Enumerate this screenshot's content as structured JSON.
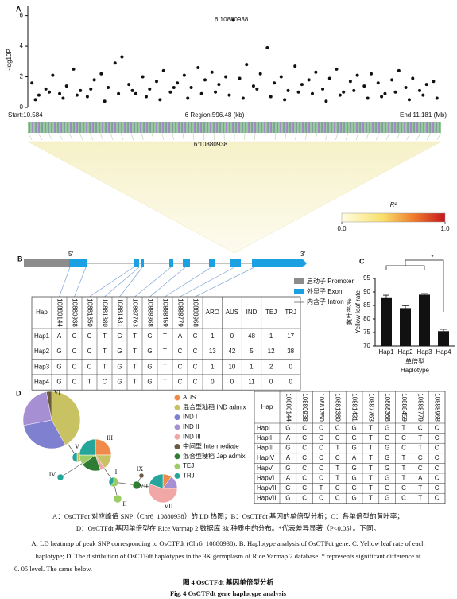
{
  "panel_a": {
    "label": "A",
    "ylabel": "-log10P",
    "ylim": [
      0,
      6.5
    ],
    "yticks": [
      0,
      2,
      4,
      6
    ],
    "xlim": [
      10.584,
      11.181
    ],
    "peak_label": "6:10880938",
    "start_label": "Start:10.584",
    "region_label": "6 Region:596.48 (kb)",
    "end_label": "End:11.181 (Mb)",
    "ld_label": "6:10880938",
    "colorbar_title": "R²",
    "colorbar_ticks": [
      {
        "value": 0,
        "label": "0.0"
      },
      {
        "value": 1,
        "label": "1.0"
      }
    ],
    "points": {
      "x": [
        10.59,
        10.6,
        10.61,
        10.62,
        10.63,
        10.64,
        10.65,
        10.66,
        10.67,
        10.68,
        10.69,
        10.7,
        10.71,
        10.72,
        10.73,
        10.74,
        10.75,
        10.76,
        10.77,
        10.78,
        10.79,
        10.8,
        10.81,
        10.82,
        10.83,
        10.84,
        10.85,
        10.86,
        10.87,
        10.880938,
        10.89,
        10.9,
        10.91,
        10.92,
        10.93,
        10.94,
        10.95,
        10.96,
        10.97,
        10.98,
        10.99,
        11.0,
        11.01,
        11.02,
        11.03,
        11.04,
        11.05,
        11.06,
        11.07,
        11.08,
        11.09,
        11.1,
        11.11,
        11.12,
        11.13,
        11.14,
        11.15,
        11.16,
        11.17,
        10.595,
        10.615,
        10.635,
        10.655,
        10.675,
        10.695,
        10.715,
        10.735,
        10.755,
        10.775,
        10.795,
        10.815,
        10.835,
        10.855,
        10.875,
        10.895,
        10.915,
        10.935,
        10.955,
        10.975,
        10.995,
        11.015,
        11.035,
        11.055,
        11.075,
        11.095,
        11.115,
        11.135,
        11.155,
        11.175
      ],
      "y": [
        1.6,
        0.8,
        1.2,
        2.1,
        0.9,
        1.4,
        2.5,
        1.1,
        0.7,
        1.8,
        2.2,
        1.3,
        2.9,
        3.3,
        1.5,
        0.9,
        2.0,
        1.2,
        1.7,
        2.4,
        1.0,
        1.6,
        2.1,
        1.3,
        2.6,
        1.8,
        2.3,
        1.5,
        2.0,
        5.7,
        1.9,
        2.8,
        1.4,
        2.2,
        3.9,
        1.6,
        2.0,
        1.1,
        2.7,
        1.5,
        1.8,
        2.3,
        1.2,
        1.9,
        2.5,
        1.0,
        1.7,
        2.1,
        1.4,
        2.2,
        1.6,
        0.9,
        1.8,
        2.4,
        1.3,
        1.9,
        1.1,
        1.5,
        1.7,
        0.5,
        1.0,
        0.6,
        0.8,
        1.2,
        0.4,
        0.9,
        1.1,
        0.7,
        0.5,
        1.3,
        0.6,
        0.9,
        1.0,
        0.8,
        0.6,
        1.2,
        0.7,
        0.5,
        1.0,
        0.9,
        0.4,
        0.8,
        1.1,
        0.6,
        0.7,
        1.0,
        0.5,
        0.8,
        0.6
      ]
    }
  },
  "panel_b": {
    "label": "B",
    "five_prime": "5'",
    "three_prime": "3'",
    "legend": [
      "启动子 Promoter",
      "外显子 Exon",
      "内含子 Intron"
    ],
    "table": {
      "header": [
        "Hap",
        "10880144",
        "10880938",
        "10881350",
        "10881380",
        "10881431",
        "10887763",
        "10888368",
        "10888459",
        "10888779",
        "10888968",
        "ARO",
        "AUS",
        "IND",
        "TEJ",
        "TRJ"
      ],
      "rows": [
        [
          "Hap1",
          "A",
          "C",
          "C",
          "T",
          "G",
          "T",
          "G",
          "T",
          "A",
          "C",
          "1",
          "0",
          "48",
          "1",
          "17"
        ],
        [
          "Hap2",
          "G",
          "C",
          "C",
          "T",
          "G",
          "T",
          "G",
          "T",
          "C",
          "C",
          "13",
          "42",
          "5",
          "12",
          "38"
        ],
        [
          "Hap3",
          "G",
          "C",
          "C",
          "T",
          "G",
          "T",
          "G",
          "T",
          "C",
          "C",
          "1",
          "10",
          "1",
          "2",
          "0"
        ],
        [
          "Hap4",
          "G",
          "C",
          "T",
          "C",
          "G",
          "T",
          "G",
          "T",
          "C",
          "C",
          "0",
          "0",
          "11",
          "0",
          "0"
        ]
      ]
    }
  },
  "panel_c": {
    "label": "C",
    "type": "bar",
    "ylabel_cn": "黄叶率/%",
    "ylabel_en": "Yellow leaf rate",
    "xlabel_cn": "单倍型",
    "xlabel_en": "Haplotype",
    "categories": [
      "Hap1",
      "Hap2",
      "Hap3",
      "Hap4"
    ],
    "values": [
      88,
      84,
      89,
      75.5
    ],
    "errors": [
      0.8,
      0.9,
      0.4,
      0.7
    ],
    "color": "#111111",
    "ylim": [
      70,
      95
    ],
    "yticks": [
      70,
      75,
      80,
      85,
      90,
      95
    ],
    "significance": "*"
  },
  "panel_d": {
    "label": "D",
    "groups": [
      "AUS",
      "混合型籼稻 IND admix",
      "IND I",
      "IND II",
      "IND III",
      "中间型 Intermediate",
      "混合型粳稻 Jap admix",
      "TEJ",
      "TRJ"
    ],
    "colors": [
      "#f08a4b",
      "#c9c263",
      "#7f80cf",
      "#a68fd2",
      "#f2a7a7",
      "#6b5a40",
      "#2e7d32",
      "#9ccc65",
      "#26a69a"
    ],
    "pies": [
      {
        "label": "VI",
        "shares": [
          0,
          42,
          30,
          25,
          0,
          3,
          0,
          0,
          0
        ]
      },
      {
        "label": "V",
        "shares": [
          0,
          50,
          0,
          0,
          0,
          0,
          0,
          0,
          50
        ]
      },
      {
        "label": "III",
        "shares": [
          25,
          15,
          0,
          0,
          5,
          0,
          20,
          10,
          25
        ]
      },
      {
        "label": "IV",
        "shares": [
          0,
          0,
          0,
          0,
          0,
          0,
          0,
          0,
          100
        ]
      },
      {
        "label": "I",
        "shares": [
          0,
          0,
          0,
          0,
          0,
          0,
          0,
          60,
          40
        ]
      },
      {
        "label": "II",
        "shares": [
          0,
          0,
          0,
          0,
          0,
          0,
          0,
          100,
          0
        ]
      },
      {
        "label": "VIII",
        "shares": [
          0,
          0,
          0,
          0,
          0,
          0,
          100,
          0,
          0
        ]
      },
      {
        "label": "IX",
        "shares": [
          0,
          0,
          0,
          0,
          0,
          100,
          0,
          0,
          0
        ]
      },
      {
        "label": "VII",
        "shares": [
          10,
          0,
          0,
          15,
          55,
          0,
          0,
          0,
          20
        ]
      }
    ],
    "table": {
      "header": [
        "Hap",
        "10880144",
        "10880938",
        "10881350",
        "10881380",
        "10881431",
        "10887763",
        "10888368",
        "10888459",
        "10888779",
        "10888968"
      ],
      "rows": [
        [
          "HapI",
          "G",
          "C",
          "C",
          "C",
          "G",
          "T",
          "G",
          "T",
          "C",
          "C"
        ],
        [
          "HapII",
          "A",
          "C",
          "C",
          "C",
          "G",
          "T",
          "G",
          "C",
          "T",
          "C"
        ],
        [
          "HapIII",
          "G",
          "C",
          "C",
          "T",
          "G",
          "T",
          "G",
          "C",
          "T",
          "C"
        ],
        [
          "HapIV",
          "A",
          "C",
          "C",
          "C",
          "A",
          "T",
          "G",
          "T",
          "C",
          "C"
        ],
        [
          "HapV",
          "G",
          "C",
          "C",
          "T",
          "G",
          "T",
          "G",
          "T",
          "C",
          "C"
        ],
        [
          "HapVI",
          "A",
          "C",
          "C",
          "T",
          "G",
          "T",
          "G",
          "T",
          "A",
          "C"
        ],
        [
          "HapVII",
          "G",
          "C",
          "T",
          "C",
          "G",
          "T",
          "G",
          "C",
          "T",
          "C"
        ],
        [
          "HapVIII",
          "G",
          "C",
          "C",
          "C",
          "G",
          "T",
          "G",
          "C",
          "T",
          "C"
        ]
      ]
    }
  },
  "caption": {
    "cn": [
      "A：OsCTFdt 对应峰值 SNP（Chr6_10880938）的 LD 热图；B：OsCTFdt 基因的单倍型分析；C：各单倍型的黄叶率；",
      "D：OsCTFdt 基因单倍型在 Rice Varmap 2 数据库 3k 种质中的分布。*代表差异显著（P<0.05）。下同。"
    ],
    "en": [
      "A: LD heatmap of peak SNP corresponding to OsCTFdt (Chr6_10880938); B: Haplotype analysis of OsCTFdt gene; C: Yellow leaf rate of each",
      "haplotype; D: The distribution of OsCTFdt haplotypes in the 3K germplasm of Rice Varmap 2 database. * represents significant difference at",
      "0. 05 level. The same below."
    ],
    "title_cn": "图 4   OsCTFdt 基因单倍型分析",
    "title_en": "Fig. 4   OsCTFdt gene haplotype analysis"
  }
}
